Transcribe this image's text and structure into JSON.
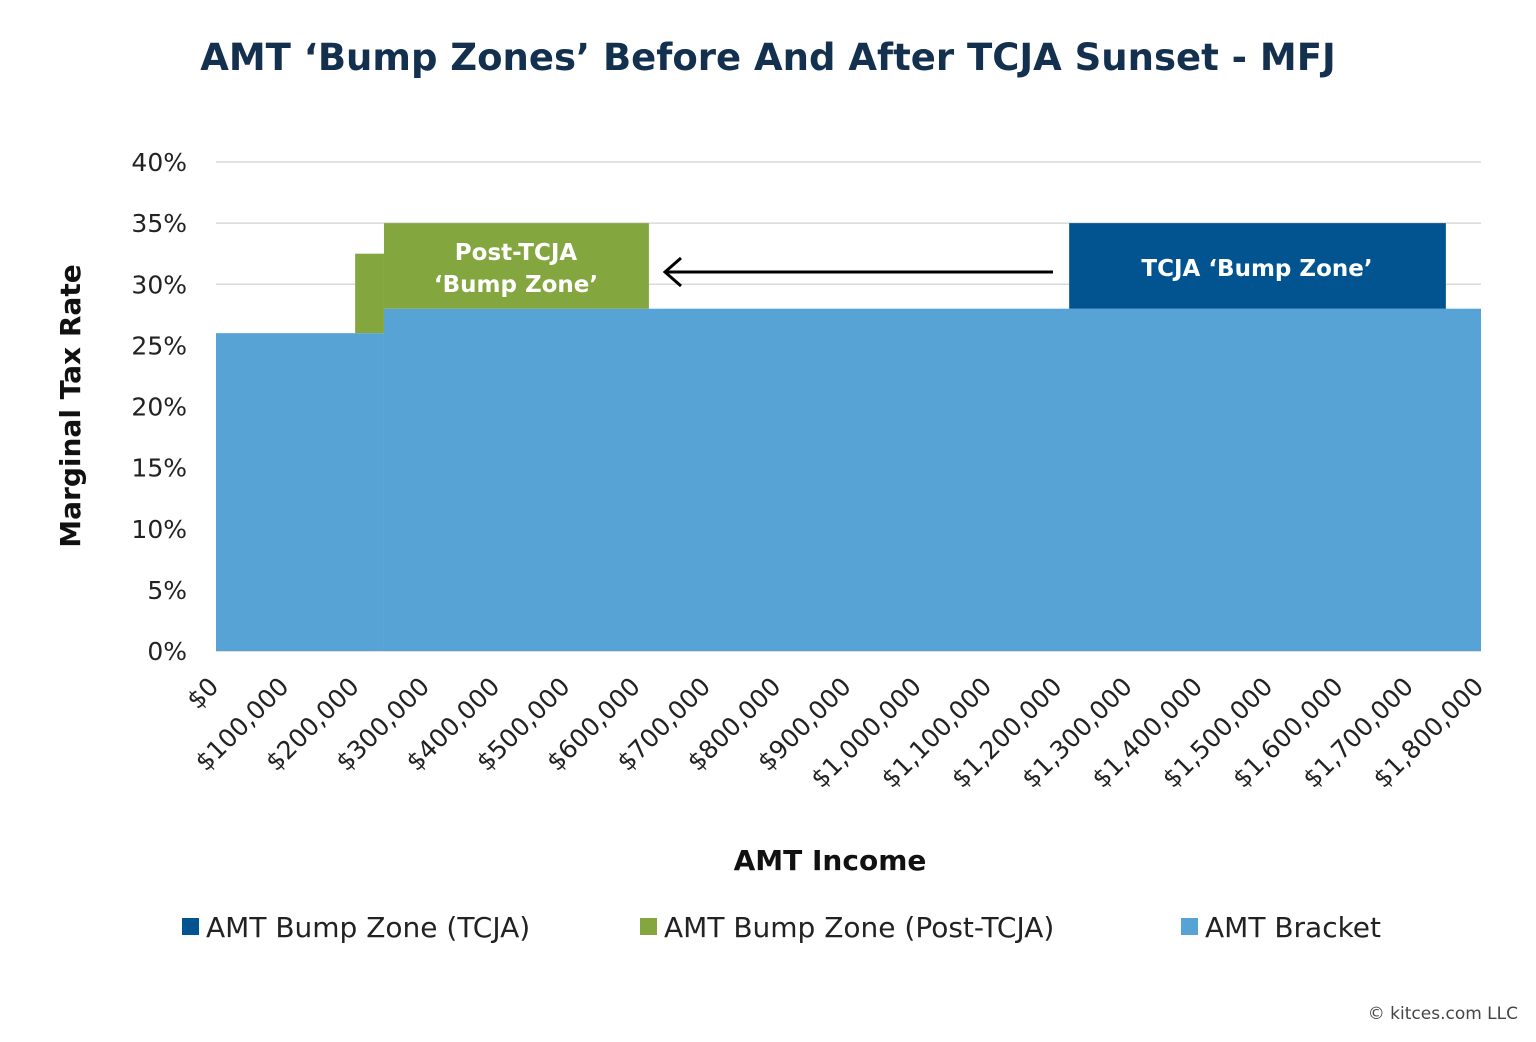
{
  "chart_data": {
    "type": "area",
    "title": "AMT ‘Bump Zones’ Before And After TCJA Sunset - MFJ",
    "xlabel": "AMT Income",
    "ylabel": "Marginal Tax Rate",
    "xlim": [
      0,
      1800000
    ],
    "ylim": [
      0,
      40
    ],
    "grid": true,
    "x_ticks": [
      "$0",
      "$100,000",
      "$200,000",
      "$300,000",
      "$400,000",
      "$500,000",
      "$600,000",
      "$700,000",
      "$800,000",
      "$900,000",
      "$1,000,000",
      "$1,100,000",
      "$1,200,000",
      "$1,300,000",
      "$1,400,000",
      "$1,500,000",
      "$1,600,000",
      "$1,700,000",
      "$1,800,000"
    ],
    "y_ticks": [
      "0%",
      "5%",
      "10%",
      "15%",
      "20%",
      "25%",
      "30%",
      "35%",
      "40%"
    ],
    "legend_placement": "bottom",
    "series": [
      {
        "name": "AMT Bump Zone (TCJA)",
        "color": "#01548f",
        "segments": [
          {
            "x0": 1214000,
            "x1": 1750000,
            "y0": 28,
            "y1": 35
          }
        ]
      },
      {
        "name": "AMT Bump Zone (Post-TCJA)",
        "color": "#84a63f",
        "segments": [
          {
            "x0": 198000,
            "x1": 239000,
            "y0": 26,
            "y1": 32.5
          },
          {
            "x0": 239000,
            "x1": 616000,
            "y0": 28,
            "y1": 35
          }
        ]
      },
      {
        "name": "AMT Bracket",
        "color": "#58a3d6",
        "segments": [
          {
            "x0": 0,
            "x1": 239000,
            "y0": 0,
            "y1": 26
          },
          {
            "x0": 239000,
            "x1": 1800000,
            "y0": 0,
            "y1": 28
          }
        ]
      }
    ],
    "annotations": [
      {
        "lines": [
          "Post-TCJA",
          "‘Bump Zone’"
        ]
      },
      {
        "lines": [
          "TCJA ‘Bump Zone’"
        ]
      }
    ],
    "arrow": {
      "from": "TCJA ‘Bump Zone’",
      "to": "Post-TCJA ‘Bump Zone’"
    }
  },
  "copyright": "© kitces.com LLC"
}
